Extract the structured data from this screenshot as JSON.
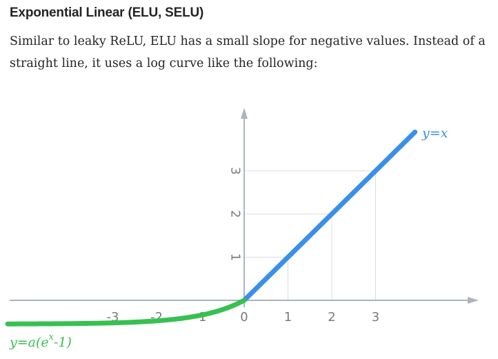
{
  "article": {
    "heading": "Exponential Linear (ELU, SELU)",
    "paragraph": "Similar to leaky ReLU, ELU has a small slope for negative values. Instead of a straight line, it uses a log curve like the following:"
  },
  "chart_data": {
    "type": "line",
    "x_tick_labels": [
      "-3",
      "-2",
      "-1",
      "0",
      "1",
      "2",
      "3"
    ],
    "y_tick_labels": [
      "1",
      "2",
      "3"
    ],
    "xlim": [
      -5.4,
      5.4
    ],
    "ylim": [
      -0.6,
      4.5
    ],
    "series": [
      {
        "name": "y=x",
        "color": "#3a90e8",
        "domain": [
          0,
          3.9
        ],
        "formula": "y = x"
      },
      {
        "name": "y=a(e^x-1)",
        "color": "#36c150",
        "domain": [
          -5.4,
          0
        ],
        "a": 0.55,
        "formula": "y = a(e^x - 1)"
      }
    ],
    "annotations": {
      "linear": "y=x",
      "elu_prefix": "y=a(e",
      "elu_exponent": "x",
      "elu_suffix": "-1)"
    },
    "grid": true,
    "legend": "none"
  }
}
